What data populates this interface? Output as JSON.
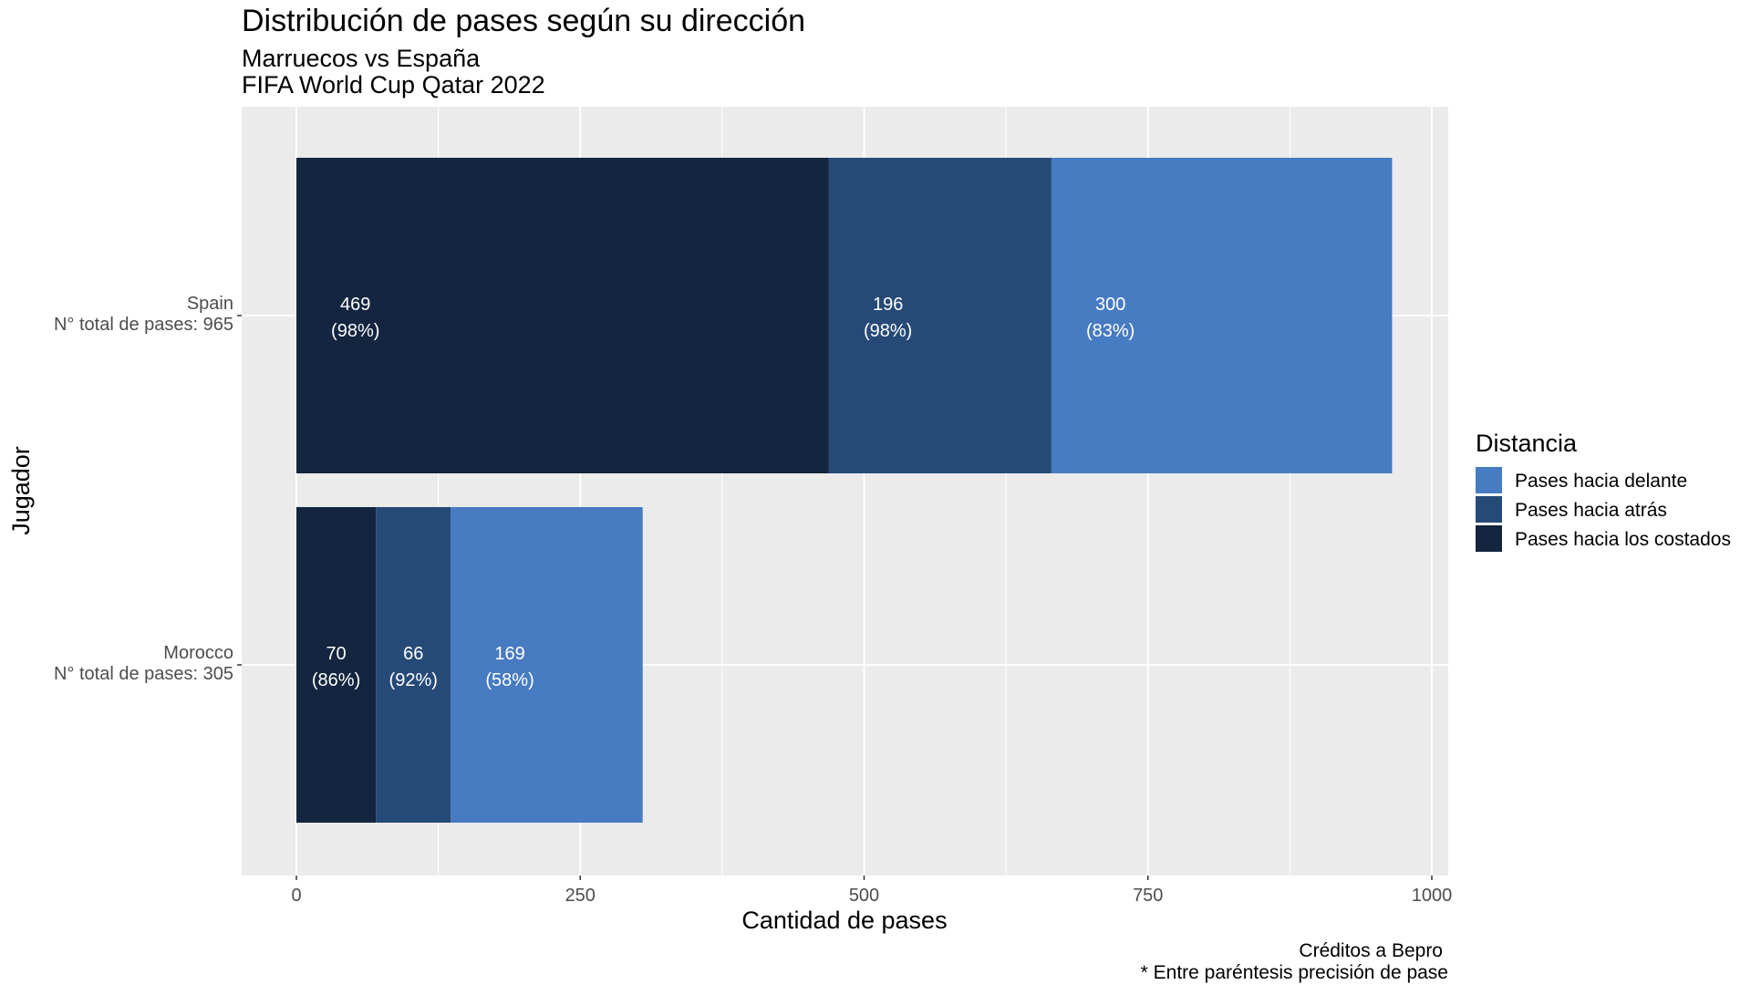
{
  "chart_data": {
    "type": "bar",
    "orientation": "horizontal",
    "stacked": true,
    "title": "Distribución de pases según su dirección",
    "subtitle_lines": [
      "Marruecos vs España",
      "FIFA World Cup Qatar 2022"
    ],
    "xlabel": "Cantidad de pases",
    "ylabel": "Jugador",
    "xlim": [
      0,
      1000
    ],
    "xticks": [
      0,
      250,
      500,
      750,
      1000
    ],
    "categories": [
      {
        "name": "Spain",
        "subtitle": "N° total de pases: 965"
      },
      {
        "name": "Morocco",
        "subtitle": "N° total de pases: 305"
      }
    ],
    "series": [
      {
        "name": "Pases hacia los costados",
        "color": "#13253f",
        "values": [
          469,
          70
        ],
        "labels": [
          "(98%)",
          "(86%)"
        ]
      },
      {
        "name": "Pases hacia atrás",
        "color": "#264a78",
        "values": [
          196,
          66
        ],
        "labels": [
          "(98%)",
          "(92%)"
        ]
      },
      {
        "name": "Pases hacia delante",
        "color": "#477bc2",
        "values": [
          300,
          169
        ],
        "labels": [
          "(83%)",
          "(58%)"
        ]
      }
    ],
    "legend": {
      "title": "Distancia",
      "position": "right",
      "order": [
        "Pases hacia delante",
        "Pases hacia atrás",
        "Pases hacia los costados"
      ]
    },
    "grid": true,
    "panel_background": "#ebebeb",
    "caption_lines": [
      "Créditos a Bepro",
      "* Entre paréntesis precisión de pase"
    ]
  }
}
